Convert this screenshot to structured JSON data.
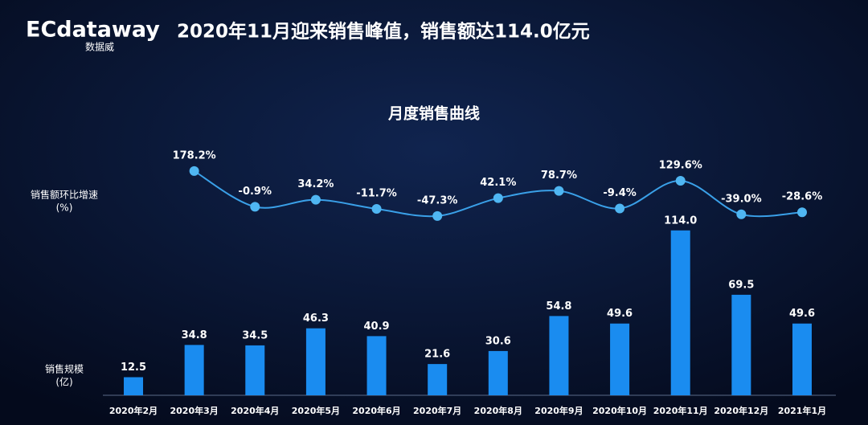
{
  "header": {
    "logo": "ECdataway",
    "logo_sub": "数据威",
    "title": "2020年11月迎来销售峰值，销售额达114.0亿元"
  },
  "chart_data": {
    "type": "bar",
    "title": "月度销售曲线",
    "categories": [
      "2020年2月",
      "2020年3月",
      "2020年4月",
      "2020年5月",
      "2020年6月",
      "2020年7月",
      "2020年8月",
      "2020年9月",
      "2020年10月",
      "2020年11月",
      "2020年12月",
      "2021年1月"
    ],
    "ylim": [
      0,
      120
    ],
    "y2lim": [
      -60,
      190
    ],
    "series": [
      {
        "name": "销售规模",
        "unit": "(亿)",
        "type": "bar",
        "color": "#1a8cf0",
        "values": [
          12.5,
          34.8,
          34.5,
          46.3,
          40.9,
          21.6,
          30.6,
          54.8,
          49.6,
          114.0,
          69.5,
          49.6
        ],
        "value_labels": [
          "12.5",
          "34.8",
          "34.5",
          "46.3",
          "40.9",
          "21.6",
          "30.6",
          "54.8",
          "49.6",
          "114.0",
          "69.5",
          "49.6"
        ]
      },
      {
        "name": "销售额环比增速",
        "unit": "(%)",
        "type": "line",
        "axis": "y2",
        "color": "#3aa0e8",
        "values": [
          null,
          178.2,
          -0.9,
          34.2,
          -11.7,
          -47.3,
          42.1,
          78.7,
          -9.4,
          129.6,
          -39.0,
          -28.6
        ],
        "value_labels": [
          null,
          "178.2%",
          "-0.9%",
          "34.2%",
          "-11.7%",
          "-47.3%",
          "42.1%",
          "78.7%",
          "-9.4%",
          "129.6%",
          "-39.0%",
          "-28.6%"
        ]
      }
    ]
  }
}
